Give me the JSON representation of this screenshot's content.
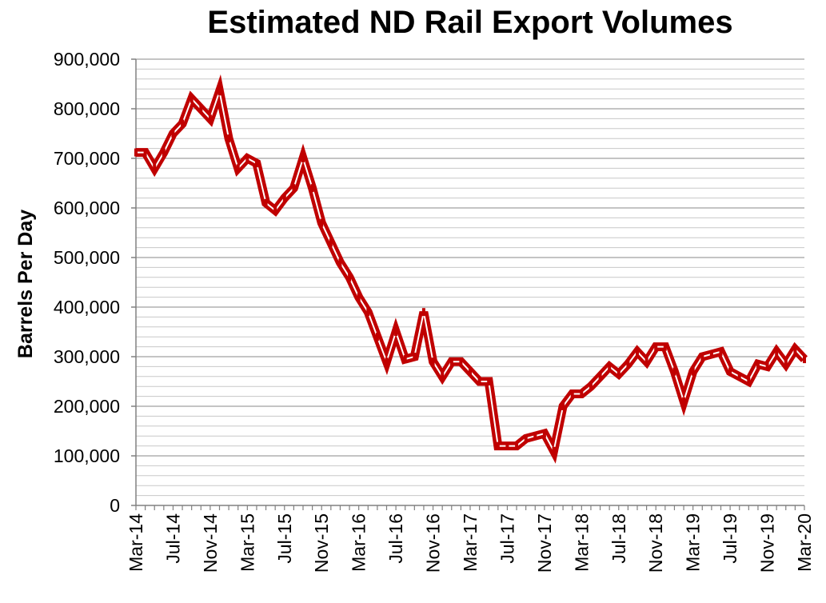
{
  "chart_data": {
    "type": "line",
    "title": "Estimated ND Rail Export Volumes",
    "xlabel": "",
    "ylabel": "Barrels Per Day",
    "ylim": [
      0,
      900000
    ],
    "y_ticks": [
      "0",
      "100,000",
      "200,000",
      "300,000",
      "400,000",
      "500,000",
      "600,000",
      "700,000",
      "800,000",
      "900,000"
    ],
    "x_tick_labels": [
      "Mar-14",
      "Jul-14",
      "Nov-14",
      "Mar-15",
      "Jul-15",
      "Nov-15",
      "Mar-16",
      "Jul-16",
      "Nov-16",
      "Mar-17",
      "Jul-17",
      "Nov-17",
      "Mar-18",
      "Jul-18",
      "Nov-18",
      "Mar-19",
      "Jul-19",
      "Nov-19",
      "Mar-20"
    ],
    "grid": true,
    "legend": "none",
    "line_color": "#c00000",
    "x": [
      "Mar-14",
      "Apr-14",
      "May-14",
      "Jun-14",
      "Jul-14",
      "Aug-14",
      "Sep-14",
      "Oct-14",
      "Nov-14",
      "Dec-14",
      "Jan-15",
      "Feb-15",
      "Mar-15",
      "Apr-15",
      "May-15",
      "Jun-15",
      "Jul-15",
      "Aug-15",
      "Sep-15",
      "Oct-15",
      "Nov-15",
      "Dec-15",
      "Jan-16",
      "Feb-16",
      "Mar-16",
      "Apr-16",
      "May-16",
      "Jun-16",
      "Jul-16",
      "Aug-16",
      "Sep-16",
      "Oct-16",
      "Nov-16",
      "Dec-16",
      "Jan-17",
      "Feb-17",
      "Mar-17",
      "Apr-17",
      "May-17",
      "Jun-17",
      "Jul-17",
      "Aug-17",
      "Sep-17",
      "Oct-17",
      "Nov-17",
      "Dec-17",
      "Jan-18",
      "Feb-18",
      "Mar-18",
      "Apr-18",
      "May-18",
      "Jun-18",
      "Jul-18",
      "Aug-18",
      "Sep-18",
      "Oct-18",
      "Nov-18",
      "Dec-18",
      "Jan-19",
      "Feb-19",
      "Mar-19",
      "Apr-19",
      "May-19",
      "Jun-19",
      "Jul-19",
      "Aug-19",
      "Sep-19",
      "Oct-19",
      "Nov-19",
      "Dec-19",
      "Jan-20",
      "Feb-20",
      "Mar-20"
    ],
    "series": [
      {
        "values": [
          712000,
          712000,
          680000,
          712000,
          750000,
          770000,
          820000,
          800000,
          780000,
          835000,
          740000,
          680000,
          700000,
          690000,
          610000,
          595000,
          620000,
          640000,
          700000,
          640000,
          570000,
          530000,
          490000,
          460000,
          420000,
          390000,
          340000,
          290000,
          350000,
          295000,
          300000,
          390000,
          290000,
          260000,
          290000,
          290000,
          270000,
          250000,
          250000,
          120000,
          120000,
          120000,
          135000,
          140000,
          145000,
          110000,
          200000,
          225000,
          225000,
          240000,
          260000,
          280000,
          265000,
          285000,
          310000,
          290000,
          320000,
          320000,
          270000,
          210000,
          270000,
          300000,
          305000,
          310000,
          270000,
          260000,
          250000,
          285000,
          280000,
          310000,
          285000,
          315000,
          295000
        ]
      }
    ]
  }
}
